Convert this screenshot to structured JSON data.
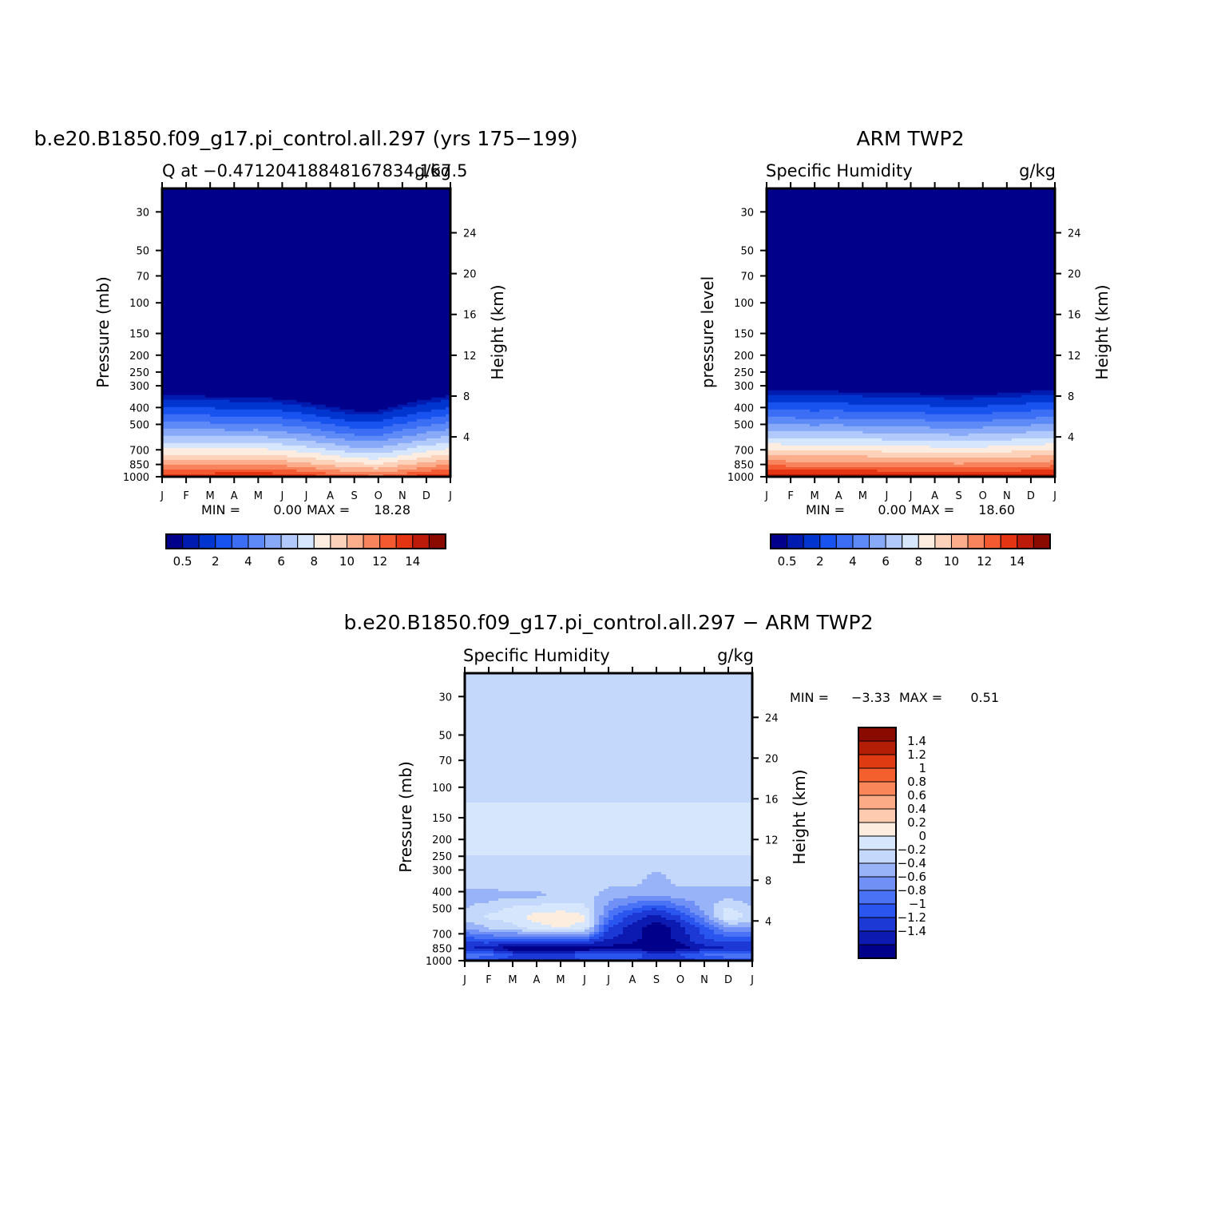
{
  "chart_data": [
    {
      "type": "heatmap",
      "title": "b.e20.B1850.f09_g17.pi_control.all.297 (yrs 175−199)",
      "left_string": "Q at −0.47120418848167834,167.5",
      "right_string": "g/kg",
      "ylabel": "Pressure (mb)",
      "ylabel_right": "Height (km)",
      "x_ticks": [
        "J",
        "F",
        "M",
        "A",
        "M",
        "J",
        "J",
        "A",
        "S",
        "O",
        "N",
        "D",
        "J"
      ],
      "y_ticks": [
        "30",
        "50",
        "70",
        "100",
        "150",
        "200",
        "250",
        "300",
        "400",
        "500",
        "700",
        "850",
        "1000"
      ],
      "y_ticks_right": [
        "24",
        "20",
        "16",
        "12",
        "8",
        "4"
      ],
      "stats": {
        "min_label": "MIN =",
        "min": "0.00",
        "max_label": "MAX =",
        "max": "18.28"
      },
      "colorbar": {
        "orientation": "horizontal",
        "labels": [
          "0.5",
          "2",
          "4",
          "6",
          "8",
          "10",
          "12",
          "14"
        ],
        "levels": [
          0.5,
          1,
          2,
          3,
          4,
          5,
          6,
          7,
          8,
          9,
          10,
          11,
          12,
          13,
          14
        ]
      },
      "profile": [
        8.1,
        8.1,
        8.0,
        7.9,
        7.9,
        7.7,
        7.4,
        7.0,
        6.6,
        6.6,
        7.2,
        7.7,
        8.1
      ],
      "surface": [
        14.8,
        14.7,
        14.8,
        14.9,
        15.0,
        14.7,
        14.3,
        13.8,
        13.2,
        13.0,
        13.6,
        14.3,
        14.8
      ]
    },
    {
      "type": "heatmap",
      "title": "ARM TWP2",
      "left_string": "Specific Humidity",
      "right_string": "g/kg",
      "ylabel": "pressure level",
      "ylabel_right": "Height (km)",
      "x_ticks": [
        "J",
        "F",
        "M",
        "A",
        "M",
        "J",
        "J",
        "A",
        "S",
        "O",
        "N",
        "D",
        "J"
      ],
      "y_ticks": [
        "30",
        "50",
        "70",
        "100",
        "150",
        "200",
        "250",
        "300",
        "400",
        "500",
        "700",
        "850",
        "1000"
      ],
      "y_ticks_right": [
        "24",
        "20",
        "16",
        "12",
        "8",
        "4"
      ],
      "stats": {
        "min_label": "MIN =",
        "min": "0.00",
        "max_label": "MAX =",
        "max": "18.60"
      },
      "colorbar": {
        "orientation": "horizontal",
        "labels": [
          "0.5",
          "2",
          "4",
          "6",
          "8",
          "10",
          "12",
          "14"
        ],
        "levels": [
          0.5,
          1,
          2,
          3,
          4,
          5,
          6,
          7,
          8,
          9,
          10,
          11,
          12,
          13,
          14
        ]
      },
      "profile": [
        8.6,
        8.5,
        8.5,
        8.5,
        8.4,
        8.3,
        8.3,
        8.2,
        8.1,
        8.2,
        8.3,
        8.5,
        8.6
      ],
      "surface": [
        15.6,
        15.6,
        15.5,
        15.6,
        15.6,
        15.4,
        15.3,
        15.2,
        15.1,
        15.2,
        15.4,
        15.5,
        15.6
      ]
    },
    {
      "type": "heatmap",
      "title": "b.e20.B1850.f09_g17.pi_control.all.297 − ARM TWP2",
      "left_string": "Specific Humidity",
      "right_string": "g/kg",
      "ylabel": "Pressure (mb)",
      "ylabel_right": "Height (km)",
      "x_ticks": [
        "J",
        "F",
        "M",
        "A",
        "M",
        "J",
        "J",
        "A",
        "S",
        "O",
        "N",
        "D",
        "J"
      ],
      "y_ticks": [
        "30",
        "50",
        "70",
        "100",
        "150",
        "200",
        "250",
        "300",
        "400",
        "500",
        "700",
        "850",
        "1000"
      ],
      "y_ticks_right": [
        "24",
        "20",
        "16",
        "12",
        "8",
        "4"
      ],
      "stats": {
        "min_label": "MIN =",
        "min": "−3.33",
        "max_label": "MAX =",
        "max": "0.51"
      },
      "colorbar": {
        "orientation": "vertical",
        "labels": [
          "1.4",
          "1.2",
          "1",
          "0.8",
          "0.6",
          "0.4",
          "0.2",
          "0",
          "−0.2",
          "−0.4",
          "−0.6",
          "−0.8",
          "−1",
          "−1.2",
          "−1.4"
        ],
        "levels": [
          -1.4,
          -1.2,
          -1.0,
          -0.8,
          -0.6,
          -0.4,
          -0.2,
          0,
          0.2,
          0.4,
          0.6,
          0.8,
          1.0,
          1.2,
          1.4
        ]
      },
      "rows": [
        {
          "p": 20,
          "v": [
            -0.05,
            -0.05,
            -0.05,
            -0.05,
            -0.05,
            -0.05,
            -0.05,
            -0.05,
            -0.05,
            -0.05,
            -0.05,
            -0.05,
            -0.05
          ]
        },
        {
          "p": 115,
          "v": [
            -0.05,
            -0.05,
            -0.05,
            -0.05,
            -0.05,
            -0.05,
            -0.05,
            -0.05,
            -0.05,
            -0.05,
            -0.05,
            -0.05,
            -0.05
          ]
        },
        {
          "p": 130,
          "v": [
            0.05,
            0.05,
            0.05,
            0.05,
            0.05,
            0.05,
            0.05,
            0.05,
            0.05,
            0.05,
            0.05,
            0.05,
            0.05
          ]
        },
        {
          "p": 240,
          "v": [
            0.05,
            0.05,
            0.05,
            0.05,
            0.05,
            0.05,
            0.05,
            0.05,
            0.05,
            0.05,
            0.05,
            0.05,
            0.05
          ]
        },
        {
          "p": 265,
          "v": [
            -0.1,
            -0.1,
            -0.1,
            -0.1,
            -0.1,
            -0.1,
            -0.1,
            -0.1,
            -0.1,
            -0.1,
            -0.1,
            -0.1,
            -0.1
          ]
        },
        {
          "p": 360,
          "v": [
            -0.15,
            -0.1,
            -0.1,
            -0.1,
            -0.1,
            -0.1,
            -0.15,
            -0.15,
            -0.3,
            -0.15,
            -0.15,
            -0.15,
            -0.15
          ]
        },
        {
          "p": 420,
          "v": [
            -0.3,
            -0.3,
            -0.25,
            -0.25,
            -0.1,
            -0.1,
            -0.3,
            -0.35,
            -0.4,
            -0.3,
            -0.3,
            -0.3,
            -0.3
          ]
        },
        {
          "p": 500,
          "v": [
            -0.2,
            -0.1,
            0.05,
            0.1,
            0.1,
            0.05,
            -0.5,
            -0.8,
            -1.0,
            -0.7,
            -0.3,
            0.05,
            -0.2
          ]
        },
        {
          "p": 560,
          "v": [
            -0.1,
            0.05,
            0.1,
            0.3,
            0.4,
            0.25,
            -0.7,
            -1.1,
            -1.3,
            -1.0,
            -0.5,
            0.2,
            -0.1
          ]
        },
        {
          "p": 650,
          "v": [
            -0.4,
            -0.2,
            -0.1,
            0.1,
            0.2,
            0.1,
            -1.0,
            -1.3,
            -1.6,
            -1.3,
            -0.9,
            -0.4,
            -0.4
          ]
        },
        {
          "p": 750,
          "v": [
            -0.9,
            -0.8,
            -0.8,
            -0.8,
            -0.8,
            -0.8,
            -1.2,
            -1.3,
            -1.6,
            -1.3,
            -1.0,
            -0.9,
            -0.9
          ]
        },
        {
          "p": 850,
          "v": [
            -1.2,
            -1.3,
            -1.6,
            -1.6,
            -1.6,
            -1.6,
            -1.5,
            -1.5,
            -1.6,
            -1.5,
            -1.3,
            -1.2,
            -1.2
          ]
        },
        {
          "p": 920,
          "v": [
            -0.6,
            -0.7,
            -1.0,
            -1.0,
            -1.1,
            -0.9,
            -0.8,
            -0.9,
            -1.1,
            -1.0,
            -0.8,
            -0.6,
            -0.6
          ]
        },
        {
          "p": 1000,
          "v": [
            -1.0,
            -1.0,
            -1.1,
            -1.1,
            -1.1,
            -1.0,
            -1.0,
            -1.0,
            -1.1,
            -1.1,
            -1.0,
            -1.0,
            -1.0
          ]
        }
      ]
    }
  ],
  "palettes": {
    "q": [
      "#00008a",
      "#001bb0",
      "#0035cf",
      "#1852ef",
      "#3b6ef5",
      "#5d8af7",
      "#87a9f8",
      "#b1c9fb",
      "#d6e6fd",
      "#fdece0",
      "#fcd2bb",
      "#fbad8c",
      "#f8845e",
      "#f45a31",
      "#e33413",
      "#bb1b08",
      "#8b0a00"
    ],
    "diff": [
      "#00008a",
      "#0d1ab2",
      "#1c39d6",
      "#2a55ee",
      "#4a72f4",
      "#7090f6",
      "#98b3f8",
      "#c4d8fb",
      "#d6e6fd",
      "#fdeddf",
      "#fccbb0",
      "#fbab86",
      "#f88659",
      "#f4602d",
      "#df3b12",
      "#b41d06",
      "#8b0a00"
    ]
  }
}
